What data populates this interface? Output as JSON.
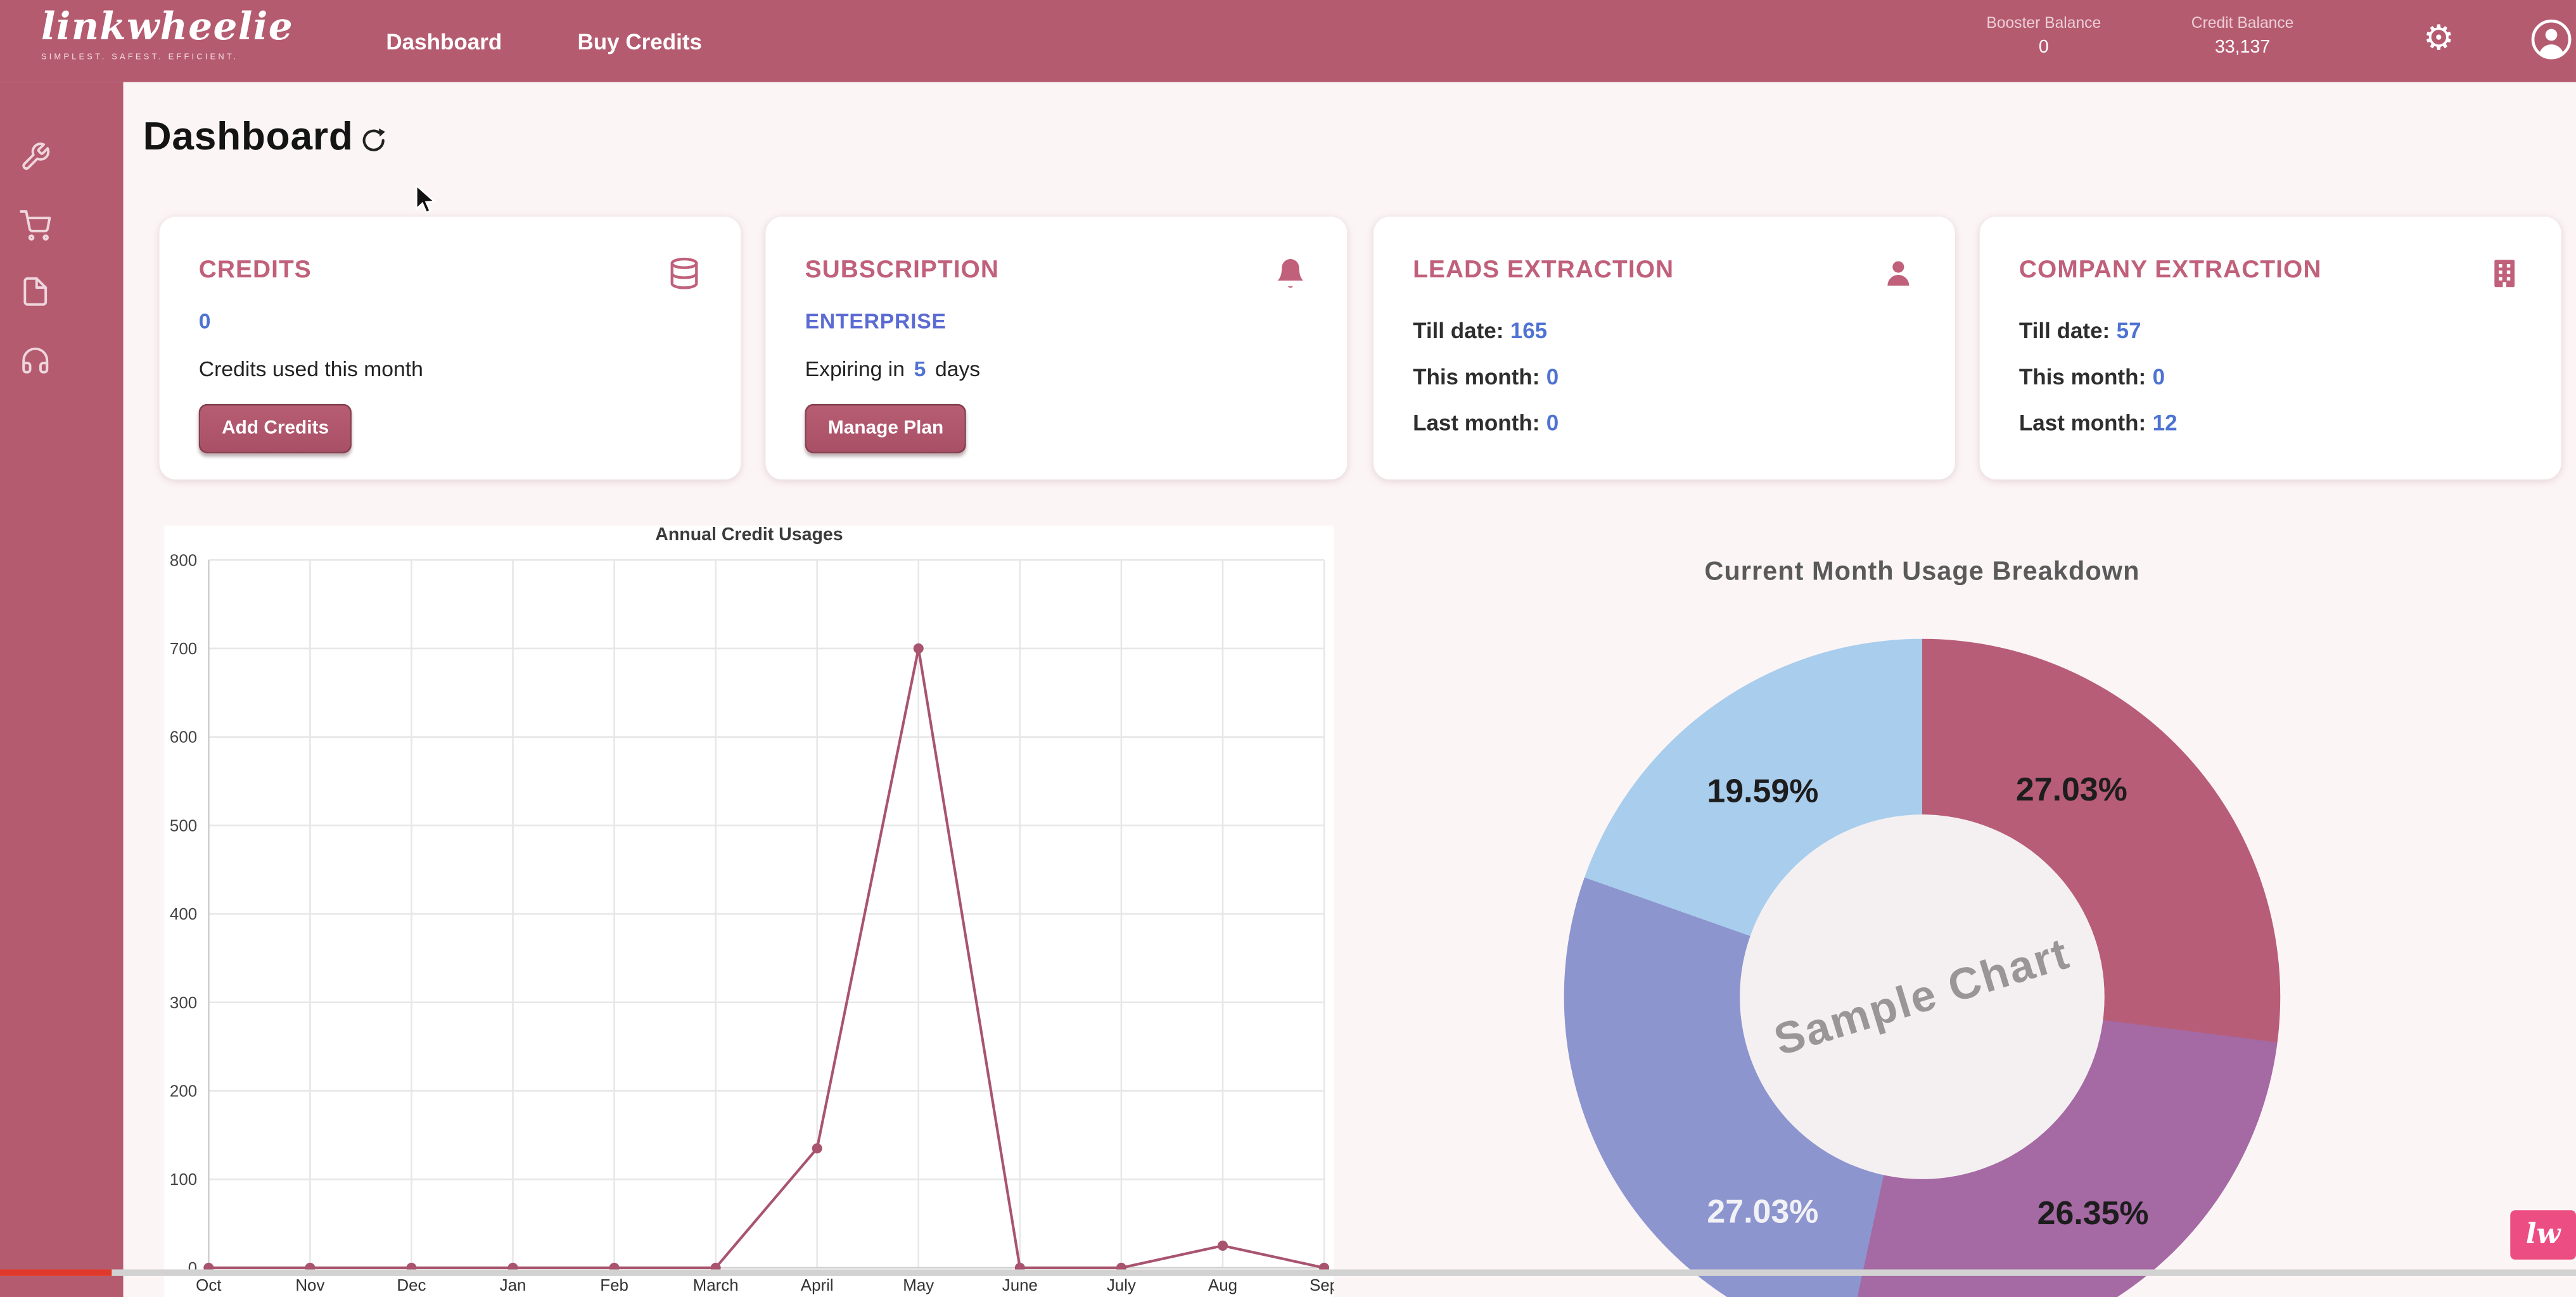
{
  "brand": {
    "logo_text": "linkwheelie",
    "tagline": "SIMPLEST. SAFEST. EFFICIENT.",
    "watermark_text": "lw"
  },
  "navbar": {
    "links": [
      {
        "label": "Dashboard"
      },
      {
        "label": "Buy Credits"
      }
    ],
    "booster": {
      "label": "Booster Balance",
      "value": "0"
    },
    "credit": {
      "label": "Credit Balance",
      "value": "33,137"
    },
    "icons": [
      "gear-icon",
      "user-avatar-icon"
    ]
  },
  "sidebar": {
    "items": [
      {
        "icon": "wrench-icon"
      },
      {
        "icon": "cart-icon"
      },
      {
        "icon": "document-icon"
      },
      {
        "icon": "headset-icon"
      }
    ]
  },
  "page": {
    "title": "Dashboard"
  },
  "cards": {
    "credits": {
      "title": "CREDITS",
      "icon": "coins-icon",
      "value": "0",
      "subtitle": "Credits used this month",
      "button_label": "Add Credits"
    },
    "subscription": {
      "title": "SUBSCRIPTION",
      "icon": "bell-icon",
      "plan": "ENTERPRISE",
      "expiry_prefix": "Expiring in",
      "expiry_value": "5",
      "expiry_suffix": "days",
      "button_label": "Manage Plan"
    },
    "leads": {
      "title": "LEADS EXTRACTION",
      "icon": "person-icon",
      "rows": [
        {
          "label": "Till date:",
          "value": "165"
        },
        {
          "label": "This month:",
          "value": "0"
        },
        {
          "label": "Last month:",
          "value": "0"
        }
      ]
    },
    "company": {
      "title": "COMPANY EXTRACTION",
      "icon": "building-icon",
      "rows": [
        {
          "label": "Till date:",
          "value": "57"
        },
        {
          "label": "This month:",
          "value": "0"
        },
        {
          "label": "Last month:",
          "value": "12"
        }
      ]
    }
  },
  "chart_data": [
    {
      "type": "line",
      "title": "Annual Credit Usages",
      "categories": [
        "Oct",
        "Nov",
        "Dec",
        "Jan",
        "Feb",
        "March",
        "April",
        "May",
        "June",
        "July",
        "Aug",
        "Sep"
      ],
      "values": [
        0,
        0,
        0,
        0,
        0,
        0,
        135,
        700,
        0,
        0,
        25,
        0
      ],
      "xlabel": "",
      "ylabel": "",
      "ylim": [
        0,
        800
      ],
      "ytick_step": 100,
      "grid": true,
      "line_color": "#a9546f"
    },
    {
      "type": "donut",
      "title": "Current Month Usage Breakdown",
      "center_label": "Sample Chart",
      "legend_position": "none",
      "slices": [
        {
          "label": "27.03%",
          "value": 27.03,
          "color": "#b85d78",
          "position": "top-right"
        },
        {
          "label": "26.35%",
          "value": 26.35,
          "color": "#a569a3",
          "position": "bottom-right"
        },
        {
          "label": "27.03%",
          "value": 27.03,
          "color": "#8d95cf",
          "position": "bottom-left"
        },
        {
          "label": "19.59%",
          "value": 19.59,
          "color": "#a9cdec",
          "position": "top-left"
        }
      ]
    }
  ],
  "colors": {
    "navbar": "#b55b70",
    "main_bg": "#fcf5f6",
    "card_title": "#c0607a",
    "value_blue": "#4f73d2",
    "watermark_pink": "#ec4d82",
    "scrub_red": "#e0392b"
  }
}
